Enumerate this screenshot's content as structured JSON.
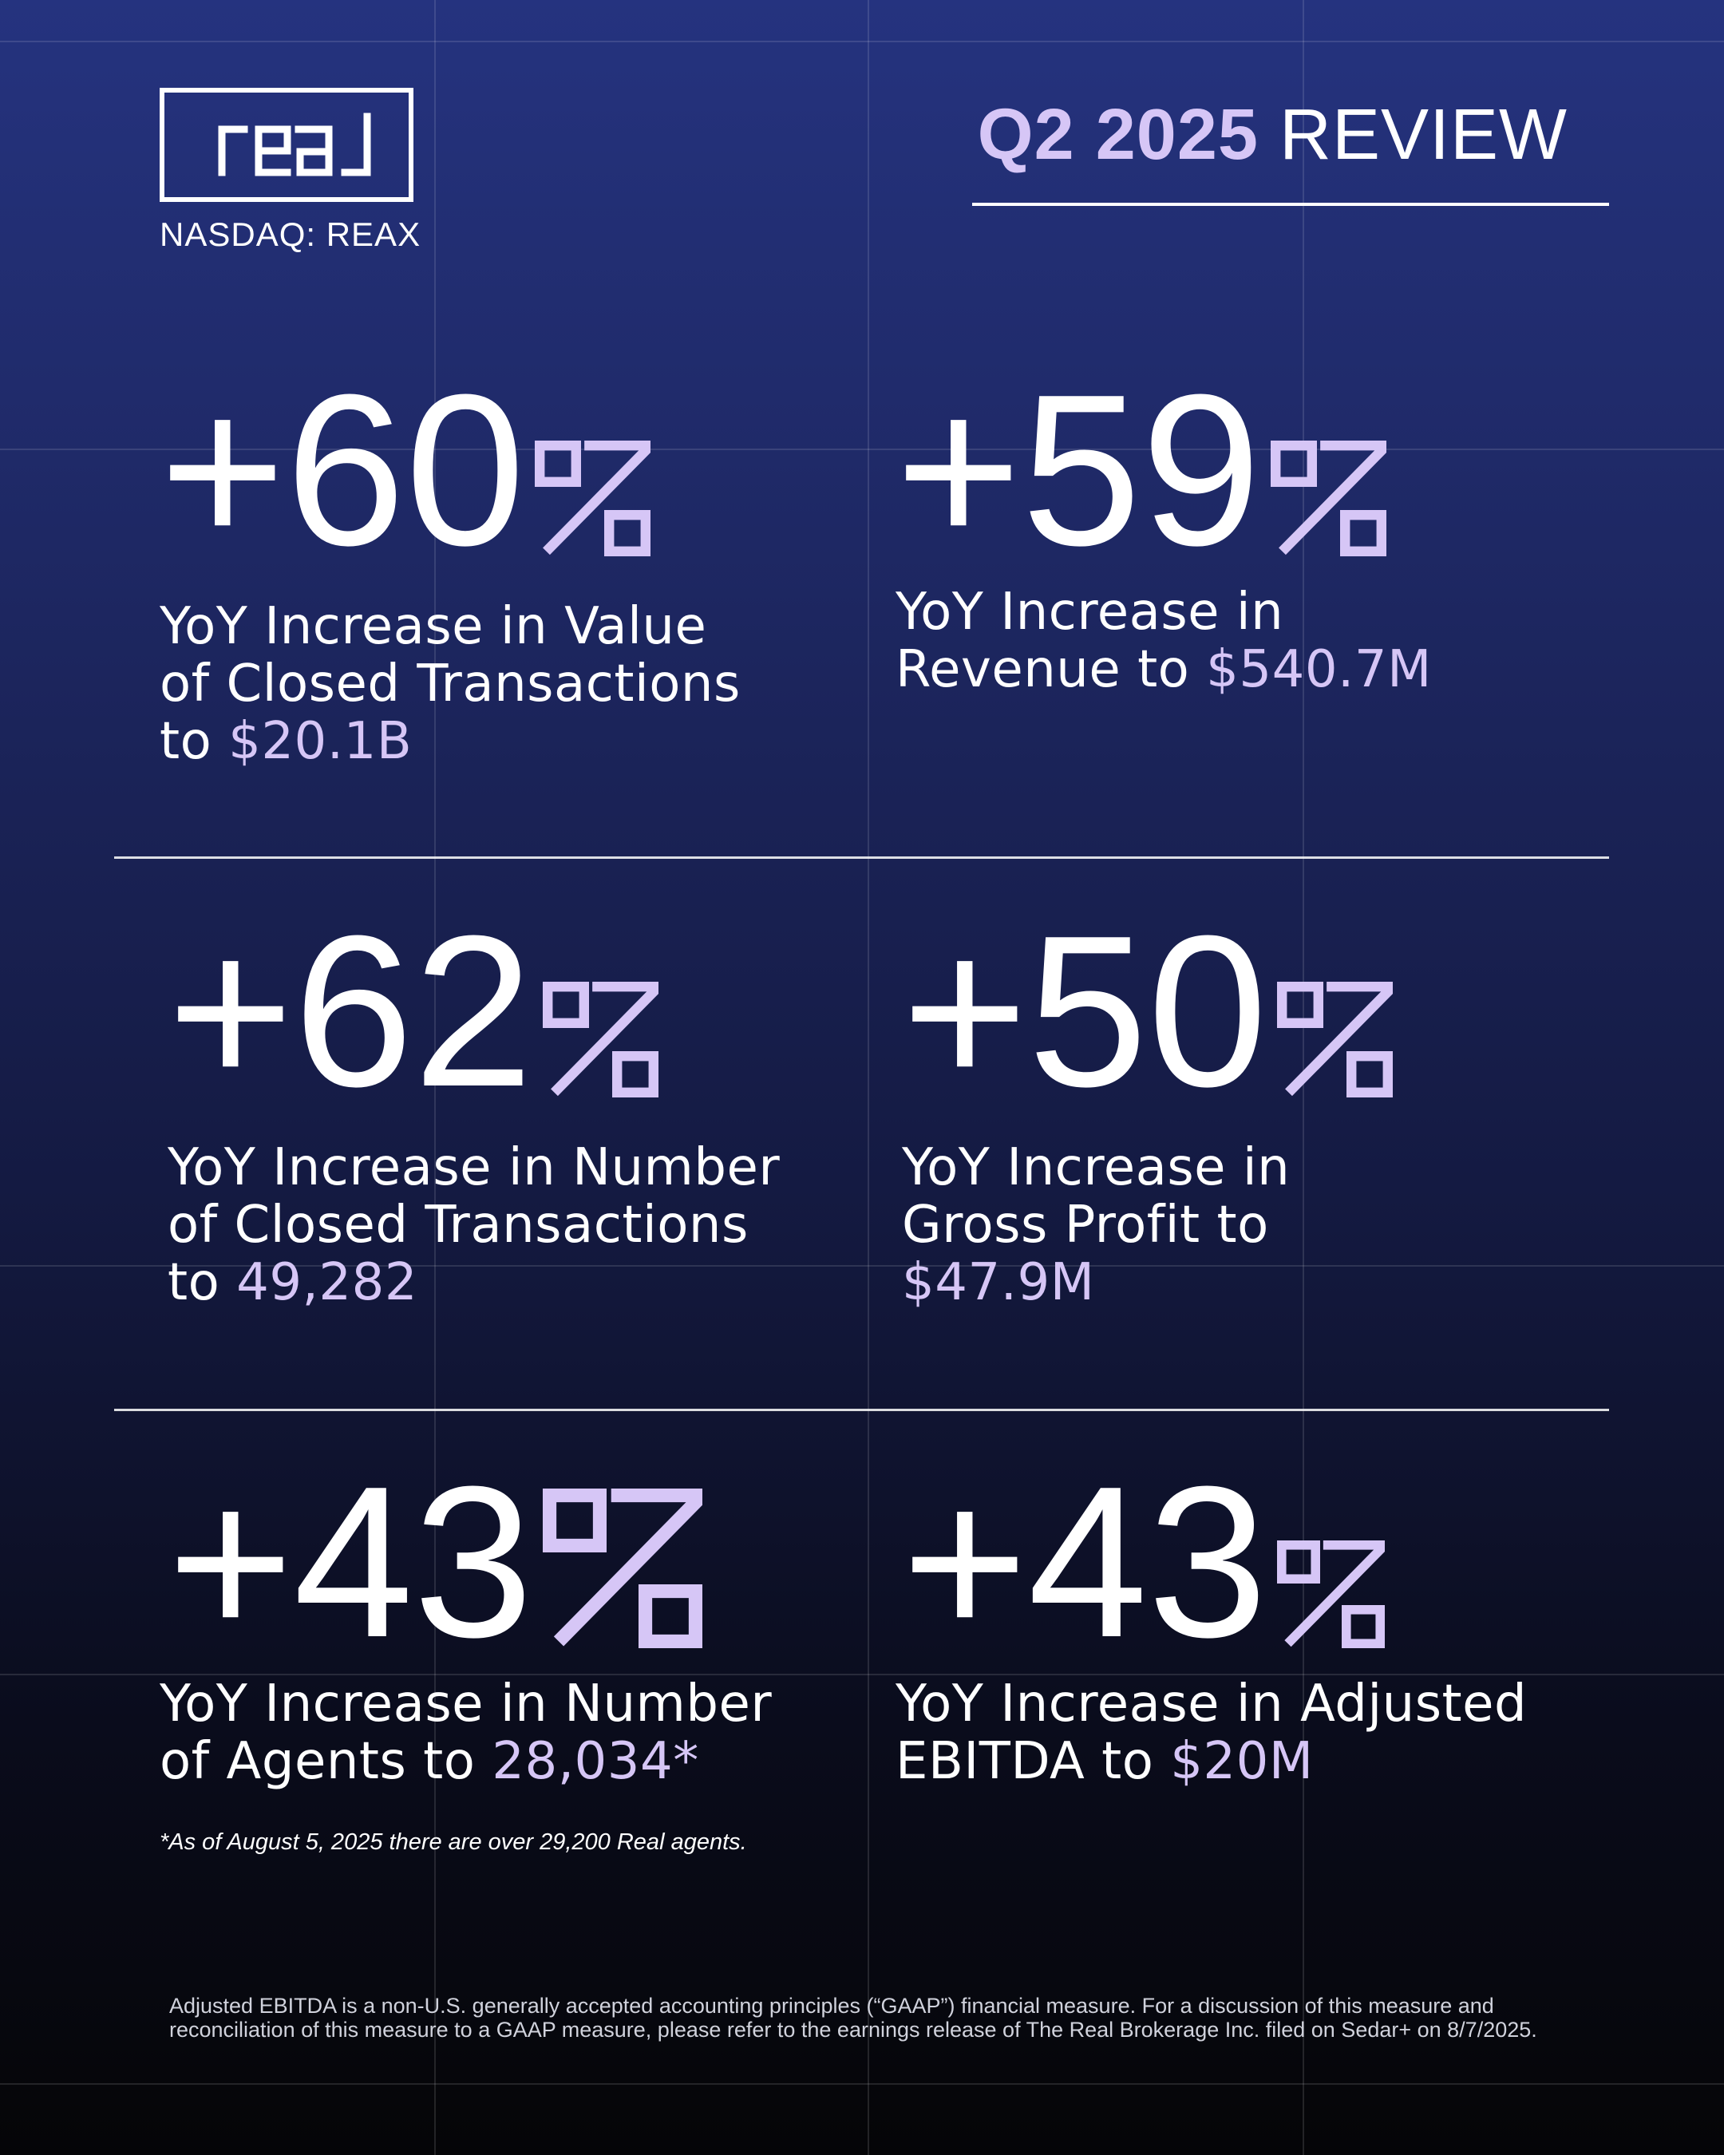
{
  "header": {
    "logo_text": "real",
    "ticker": "NASDAQ: REAX",
    "review_accent": "Q2 2025",
    "review_word": "REVIEW"
  },
  "stats": [
    {
      "number": "+60",
      "desc_line1": "YoY Increase in Value",
      "desc_line2": "of Closed Transactions",
      "desc_line3_prefix": "to ",
      "highlight": "$20.1B"
    },
    {
      "number": "+59",
      "desc_line1": "YoY Increase in",
      "desc_line2_prefix": "Revenue to ",
      "highlight": "$540.7M"
    },
    {
      "number": "+62",
      "desc_line1": "YoY Increase in Number",
      "desc_line2": "of Closed Transactions",
      "desc_line3_prefix": "to ",
      "highlight": "49,282"
    },
    {
      "number": "+50",
      "desc_line1": "YoY Increase in",
      "desc_line2": "Gross Profit to",
      "highlight": "$47.9M"
    },
    {
      "number": "+43",
      "desc_line1": "YoY Increase in Number",
      "desc_line2_prefix": "of Agents to ",
      "highlight": "28,034*"
    },
    {
      "number": "+43",
      "desc_line1": "YoY Increase in Adjusted",
      "desc_line2_prefix": "EBITDA to ",
      "highlight": "$20M"
    }
  ],
  "footnote": "*As of August 5, 2025 there are over 29,200 Real agents.",
  "disclaimer": {
    "line1": "Adjusted EBITDA is a non-U.S. generally accepted accounting principles (“GAAP”) financial measure. For a discussion of this measure and",
    "line2": "reconciliation of this measure to a GAAP measure, please refer to the earnings release of The Real Brokerage Inc. filed on Sedar+ on 8/7/2025."
  },
  "colors": {
    "accent": "#d6c6f6",
    "text": "#ffffff",
    "bg_top": "#25337f",
    "bg_bottom": "#050507"
  }
}
